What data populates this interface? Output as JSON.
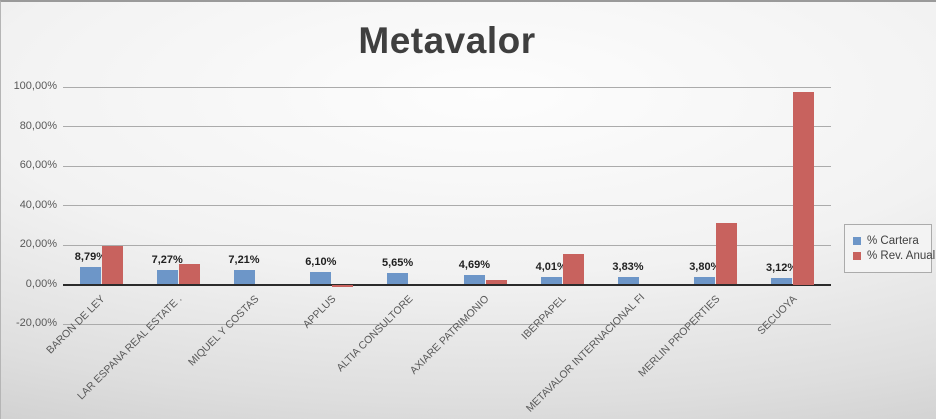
{
  "title": "Metavalor",
  "colors": {
    "cartera_blue": "#6d96c8",
    "rev_anual_red": "#c8625e",
    "axis_line": "#2b2b2b",
    "gridline": "#ababab",
    "tick_text": "#595959",
    "data_label_text": "#1f1f1f",
    "title_text": "#3f3f3f",
    "legend_bg": "#f3f3f3",
    "legend_border": "#ababab"
  },
  "y_axis": {
    "tick_labels": [
      "100,00%",
      "80,00%",
      "60,00%",
      "40,00%",
      "20,00%",
      "0,00%",
      "-20,00%"
    ],
    "max": 100,
    "min": -20,
    "step": 20
  },
  "legend": {
    "position": "right",
    "items": [
      {
        "label": "% Cartera",
        "color": "#6d96c8"
      },
      {
        "label": "% Rev. Anual",
        "color": "#c8625e"
      }
    ]
  },
  "chart_data": {
    "type": "bar",
    "title": "Metavalor",
    "categories": [
      "BARON DE LEY",
      "LAR ESPANA REAL ESTATE .",
      "MIQUEL Y COSTAS",
      "APPLUS",
      "ALTIA CONSULTORE",
      "AXIARE PATRIMONIO",
      "IBERPAPEL",
      "METAVALOR INTERNACIONAL FI",
      "MERLIN PROPERTIES",
      "SECUOYA"
    ],
    "series": [
      {
        "name": "% Cartera",
        "color": "#6d96c8",
        "values": [
          8.79,
          7.27,
          7.21,
          6.1,
          5.65,
          4.69,
          4.01,
          3.83,
          3.8,
          3.12
        ],
        "labels": [
          "8,79%",
          "7,27%",
          "7,21%",
          "6,10%",
          "5,65%",
          "4,69%",
          "4,01%",
          "3,83%",
          "3,80%",
          "3,12%"
        ]
      },
      {
        "name": "% Rev. Anual",
        "color": "#c8625e",
        "values": [
          19.7,
          10.3,
          0.0,
          -1.5,
          0.0,
          2.3,
          15.3,
          0.0,
          31.0,
          97.5
        ],
        "labels": null
      }
    ],
    "ylim": [
      -20,
      100
    ],
    "grid": true,
    "legend_position": "right",
    "value_format": "percent_comma_decimal"
  }
}
